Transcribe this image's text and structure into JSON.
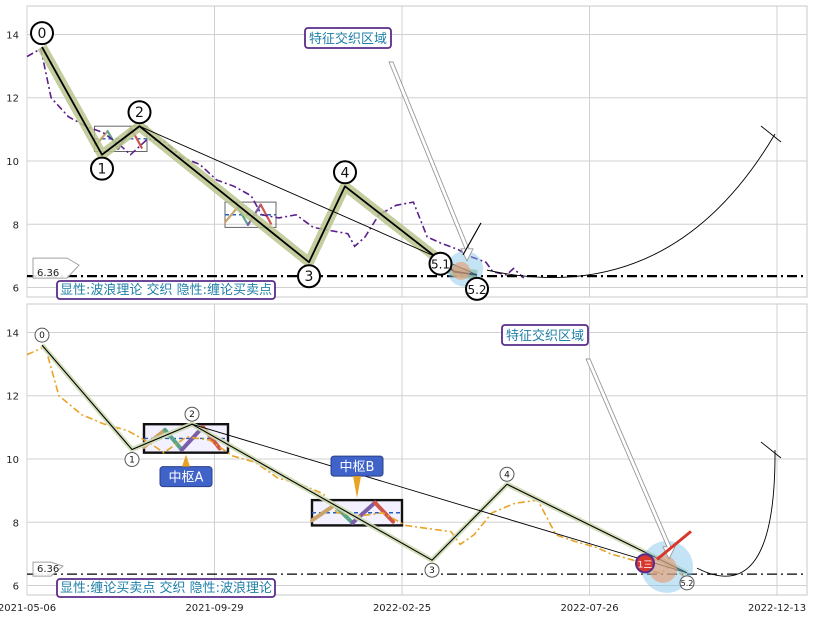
{
  "chart_data": [
    {
      "type": "line",
      "title": "",
      "ylim": [
        5.7,
        14.9
      ],
      "yticks": [
        6,
        8,
        10,
        12,
        14
      ],
      "grid": true,
      "reference_line": {
        "value": 6.36,
        "label": "6.36"
      },
      "highlight_label": "特征交织区域",
      "legend_text": "显性:波浪理论 交织 隐性:缠论买卖点",
      "price": [
        [
          0,
          13.3
        ],
        [
          8,
          13.55
        ],
        [
          14,
          12.0
        ],
        [
          24,
          11.4
        ],
        [
          34,
          11.1
        ],
        [
          44,
          10.9
        ],
        [
          54,
          10.5
        ],
        [
          60,
          10.2
        ],
        [
          70,
          10.7
        ],
        [
          80,
          10.6
        ],
        [
          90,
          10.1
        ],
        [
          100,
          9.9
        ],
        [
          110,
          9.4
        ],
        [
          120,
          9.2
        ],
        [
          130,
          8.9
        ],
        [
          136,
          8.3
        ],
        [
          146,
          8.2
        ],
        [
          156,
          8.3
        ],
        [
          166,
          7.9
        ],
        [
          176,
          7.8
        ],
        [
          186,
          7.7
        ],
        [
          190,
          7.3
        ],
        [
          196,
          7.6
        ],
        [
          204,
          8.3
        ],
        [
          214,
          8.6
        ],
        [
          224,
          8.7
        ],
        [
          232,
          7.6
        ],
        [
          240,
          7.4
        ],
        [
          250,
          7.2
        ],
        [
          256,
          7.0
        ],
        [
          266,
          6.8
        ],
        [
          270,
          6.5
        ],
        [
          278,
          6.4
        ],
        [
          282,
          6.6
        ],
        [
          288,
          6.3
        ]
      ],
      "wave_points": [
        {
          "label": "0",
          "x": 10,
          "y": 13.6
        },
        {
          "label": "1",
          "x": 50,
          "y": 10.2
        },
        {
          "label": "2",
          "x": 75,
          "y": 11.1
        },
        {
          "label": "3",
          "x": 188,
          "y": 6.8
        },
        {
          "label": "4",
          "x": 212,
          "y": 9.2
        },
        {
          "label": "5.1",
          "x": 285,
          "y": 6.5
        },
        {
          "label": "5.2",
          "x": 300,
          "y": 6.4
        }
      ],
      "zones": [
        {
          "x0": 45,
          "x1": 80,
          "y0": 10.3,
          "y1": 11.1
        },
        {
          "x0": 132,
          "x1": 166,
          "y0": 7.9,
          "y1": 8.7
        }
      ]
    },
    {
      "type": "line",
      "title": "",
      "ylim": [
        5.7,
        14.9
      ],
      "yticks": [
        6,
        8,
        10,
        12,
        14
      ],
      "xticks": [
        {
          "x": 0,
          "label": "2021-05-06"
        },
        {
          "x": 125,
          "label": "2021-09-29"
        },
        {
          "x": 250,
          "label": "2022-02-25"
        },
        {
          "x": 375,
          "label": "2022-07-26"
        },
        {
          "x": 500,
          "label": "2022-12-13"
        }
      ],
      "grid": true,
      "reference_line": {
        "value": 6.36,
        "label": "6.36"
      },
      "highlight_label": "特征交织区域",
      "legend_text": "显性:缠论买卖点 交织 隐性:波浪理论",
      "center_labels": [
        "中枢A",
        "中枢B"
      ],
      "buy_marker": "1三",
      "price": [
        [
          0,
          13.3
        ],
        [
          8,
          13.55
        ],
        [
          14,
          12.0
        ],
        [
          24,
          11.4
        ],
        [
          34,
          11.1
        ],
        [
          44,
          10.9
        ],
        [
          54,
          10.5
        ],
        [
          60,
          10.2
        ],
        [
          70,
          10.7
        ],
        [
          80,
          10.6
        ],
        [
          90,
          10.1
        ],
        [
          100,
          9.9
        ],
        [
          110,
          9.4
        ],
        [
          120,
          9.2
        ],
        [
          130,
          8.9
        ],
        [
          136,
          8.3
        ],
        [
          146,
          8.2
        ],
        [
          156,
          8.3
        ],
        [
          166,
          7.9
        ],
        [
          176,
          7.8
        ],
        [
          186,
          7.7
        ],
        [
          190,
          7.3
        ],
        [
          196,
          7.6
        ],
        [
          204,
          8.3
        ],
        [
          214,
          8.6
        ],
        [
          224,
          8.7
        ],
        [
          232,
          7.6
        ],
        [
          240,
          7.4
        ],
        [
          250,
          7.2
        ],
        [
          256,
          7.0
        ],
        [
          266,
          6.8
        ],
        [
          270,
          6.5
        ],
        [
          278,
          6.4
        ],
        [
          282,
          6.6
        ],
        [
          288,
          6.3
        ]
      ],
      "wave_points": [
        {
          "label": "0",
          "x": 10,
          "y": 13.6
        },
        {
          "label": "1",
          "x": 70,
          "y": 10.3
        },
        {
          "label": "2",
          "x": 110,
          "y": 11.1
        },
        {
          "label": "3",
          "x": 270,
          "y": 6.8
        },
        {
          "label": "4",
          "x": 320,
          "y": 9.2
        },
        {
          "label": "5.2",
          "x": 440,
          "y": 6.4
        }
      ],
      "zones": [
        {
          "x0": 78,
          "x1": 134,
          "y0": 10.2,
          "y1": 11.1
        },
        {
          "x0": 190,
          "x1": 250,
          "y0": 7.9,
          "y1": 8.7
        }
      ]
    }
  ]
}
